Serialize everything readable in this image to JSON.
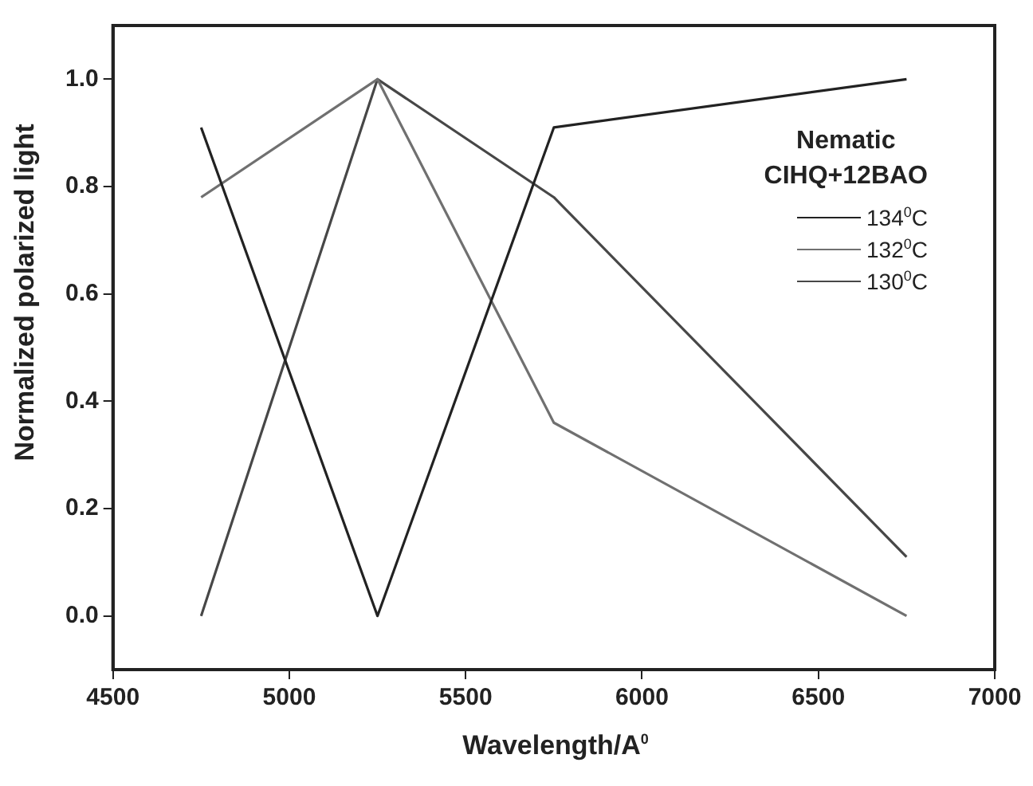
{
  "chart_data": {
    "type": "line",
    "xlabel": "Wavelength/A$^{0}$",
    "ylabel": "Normalized polarized light",
    "legend_title": "Nematic\nCIHQ+12BAO",
    "legend": "top right",
    "grid": false,
    "marker": "none",
    "line_style": "solid",
    "x": [
      4750,
      5250,
      5750,
      6750
    ],
    "xlim": [
      4500,
      7000
    ],
    "xticks": [
      4500,
      5000,
      5500,
      6000,
      6500,
      7000
    ],
    "ylim": [
      -0.1,
      1.1
    ],
    "yticks": [
      {
        "value": 0,
        "label": "0.0"
      },
      {
        "value": 0.2,
        "label": "0.2"
      },
      {
        "value": 0.4,
        "label": "0.4"
      },
      {
        "value": 0.6,
        "label": "0.6"
      },
      {
        "value": 0.8,
        "label": "0.8"
      },
      {
        "value": 1,
        "label": "1.0"
      }
    ],
    "series": [
      {
        "name": "134$^{0}$C",
        "color": "#222222",
        "values": [
          0.91,
          0,
          0.91,
          1.0
        ]
      },
      {
        "name": "132$^{0}$C",
        "color": "#707070",
        "values": [
          0.78,
          1.0,
          0.36,
          0
        ]
      },
      {
        "name": "130$^{0}$C",
        "color": "#474747",
        "values": [
          0,
          1.0,
          0.78,
          0.11
        ]
      }
    ]
  }
}
